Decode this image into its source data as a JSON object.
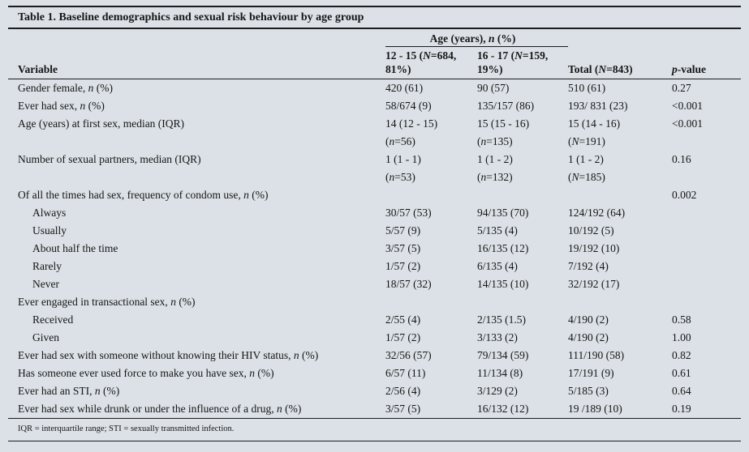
{
  "colors": {
    "page_background": "#dbe1e6",
    "rule": "#1c1c1c",
    "text": "#161616"
  },
  "title": "Table 1. Baseline demographics and sexual risk behaviour by age group",
  "header": {
    "group": "Age (years), n (%)",
    "variable": "Variable",
    "col1": {
      "line1": "12 - 15 (N=684,",
      "line2": "81%)"
    },
    "col2": {
      "line1": "16 - 17 (N=159,",
      "line2": "19%)"
    },
    "total": "Total (N=843)",
    "pvalue": "p-value"
  },
  "rows": [
    {
      "v": "Gender female, n (%)",
      "a": "420 (61)",
      "b": "90 (57)",
      "t": "510 (61)",
      "p": "0.27"
    },
    {
      "v": "Ever had sex, n (%)",
      "a": "58/674 (9)",
      "b": "135/157 (86)",
      "t": "193/ 831 (23)",
      "p": "<0.001"
    },
    {
      "v": "Age (years) at first sex, median (IQR)",
      "a": "14 (12 - 15)",
      "a2": "(n=56)",
      "b": "15 (15 - 16)",
      "b2": "(n=135)",
      "t": "15 (14 - 16)",
      "t2": "(N=191)",
      "p": "<0.001"
    },
    {
      "v": "Number of sexual partners, median (IQR)",
      "a": "1 (1 - 1)",
      "a2": "(n=53)",
      "b": "1 (1 - 2)",
      "b2": "(n=132)",
      "t": "1 (1 - 2)",
      "t2": "(N=185)",
      "p": "0.16"
    },
    {
      "v": "Of all the times had sex, frequency of condom use, n (%)",
      "a": "",
      "b": "",
      "t": "",
      "p": "0.002"
    },
    {
      "v": "Always",
      "indent": true,
      "a": "30/57 (53)",
      "b": "94/135 (70)",
      "t": "124/192 (64)",
      "p": ""
    },
    {
      "v": "Usually",
      "indent": true,
      "a": "5/57 (9)",
      "b": "5/135 (4)",
      "t": "10/192 (5)",
      "p": ""
    },
    {
      "v": "About half the time",
      "indent": true,
      "a": "3/57 (5)",
      "b": "16/135 (12)",
      "t": "19/192 (10)",
      "p": ""
    },
    {
      "v": "Rarely",
      "indent": true,
      "a": "1/57 (2)",
      "b": "6/135 (4)",
      "t": "7/192 (4)",
      "p": ""
    },
    {
      "v": "Never",
      "indent": true,
      "a": "18/57 (32)",
      "b": "14/135 (10)",
      "t": "32/192 (17)",
      "p": ""
    },
    {
      "v": "Ever engaged in transactional sex, n (%)",
      "a": "",
      "b": "",
      "t": "",
      "p": ""
    },
    {
      "v": "Received",
      "indent": true,
      "a": "2/55 (4)",
      "b": "2/135 (1.5)",
      "t": "4/190 (2)",
      "p": "0.58"
    },
    {
      "v": "Given",
      "indent": true,
      "a": "1/57 (2)",
      "b": "3/133 (2)",
      "t": "4/190 (2)",
      "p": "1.00"
    },
    {
      "v": "Ever had sex with someone without knowing their HIV status, n (%)",
      "a": "32/56 (57)",
      "b": "79/134 (59)",
      "t": "111/190 (58)",
      "p": "0.82"
    },
    {
      "v": "Has someone ever used force to make you have sex, n (%)",
      "a": "6/57 (11)",
      "b": "11/134 (8)",
      "t": "17/191 (9)",
      "p": "0.61"
    },
    {
      "v": "Ever had an STI, n (%)",
      "a": "2/56 (4)",
      "b": "3/129 (2)",
      "t": "5/185 (3)",
      "p": "0.64"
    },
    {
      "v": "Ever had sex while drunk or under the influence of a drug, n (%)",
      "a": "3/57 (5)",
      "b": "16/132 (12)",
      "t": "19 /189 (10)",
      "p": "0.19"
    }
  ],
  "footnote": "IQR = interquartile range; STI = sexually transmitted infection."
}
